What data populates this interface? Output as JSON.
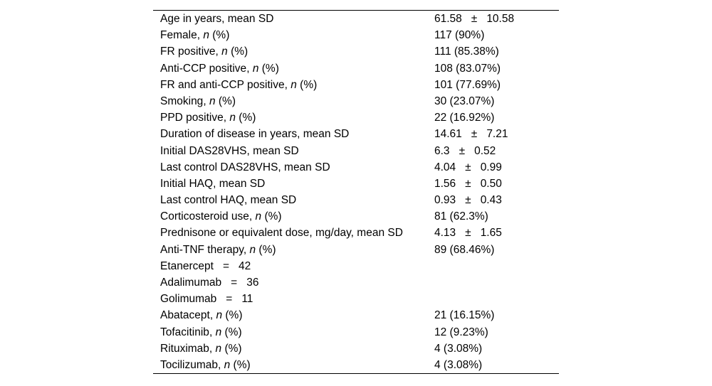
{
  "page": {
    "background_color": "#ffffff",
    "text_color": "#000000",
    "rule_color": "#000000"
  },
  "table": {
    "n_label": {
      "comma": ",",
      "n": "n",
      "pct": "(%)"
    },
    "rows": [
      {
        "label": "Age in years, mean SD",
        "mean": "61.58",
        "pm": "±",
        "sd": "10.58"
      },
      {
        "label": "Female",
        "n_pct": true,
        "value": "117 (90%)"
      },
      {
        "label": "FR positive",
        "n_pct": true,
        "value": "111 (85.38%)"
      },
      {
        "label": "Anti-CCP positive",
        "n_pct": true,
        "value": "108 (83.07%)"
      },
      {
        "label": "FR and anti-CCP positive",
        "n_pct": true,
        "value": "101 (77.69%)"
      },
      {
        "label": "Smoking",
        "n_pct": true,
        "value": "30 (23.07%)"
      },
      {
        "label": "PPD positive",
        "n_pct": true,
        "value": "22 (16.92%)"
      },
      {
        "label": "Duration of disease in years, mean SD",
        "mean": "14.61",
        "pm": "±",
        "sd": "7.21"
      },
      {
        "label": "Initial DAS28VHS, mean SD",
        "mean": "6.3",
        "pm": "±",
        "sd": "0.52"
      },
      {
        "label": "Last control DAS28VHS, mean SD",
        "mean": "4.04",
        "pm": "±",
        "sd": "0.99"
      },
      {
        "label": "Initial HAQ, mean SD",
        "mean": "1.56",
        "pm": "±",
        "sd": "0.50"
      },
      {
        "label": "Last control HAQ, mean SD",
        "mean": "0.93",
        "pm": "±",
        "sd": "0.43"
      },
      {
        "label": "Corticosteroid use",
        "n_pct": true,
        "value": "81 (62.3%)"
      },
      {
        "label": "Prednisone or equivalent dose, mg/day, mean SD",
        "mean": "4.13",
        "pm": "±",
        "sd": "1.65"
      },
      {
        "label": "Anti-TNF therapy",
        "n_pct": true,
        "value": "89 (68.46%)"
      },
      {
        "label": "Etanercept",
        "eq": "=",
        "count": "42"
      },
      {
        "label": "Adalimumab",
        "eq": "=",
        "count": "36"
      },
      {
        "label": "Golimumab",
        "eq": "=",
        "count": "11"
      },
      {
        "label": "Abatacept",
        "n_pct": true,
        "value": "21 (16.15%)"
      },
      {
        "label": "Tofacitinib",
        "n_pct": true,
        "value": "12 (9.23%)"
      },
      {
        "label": "Rituximab",
        "n_pct": true,
        "value": "4 (3.08%)"
      },
      {
        "label": "Tocilizumab",
        "n_pct": true,
        "value": "4 (3.08%)"
      }
    ]
  }
}
